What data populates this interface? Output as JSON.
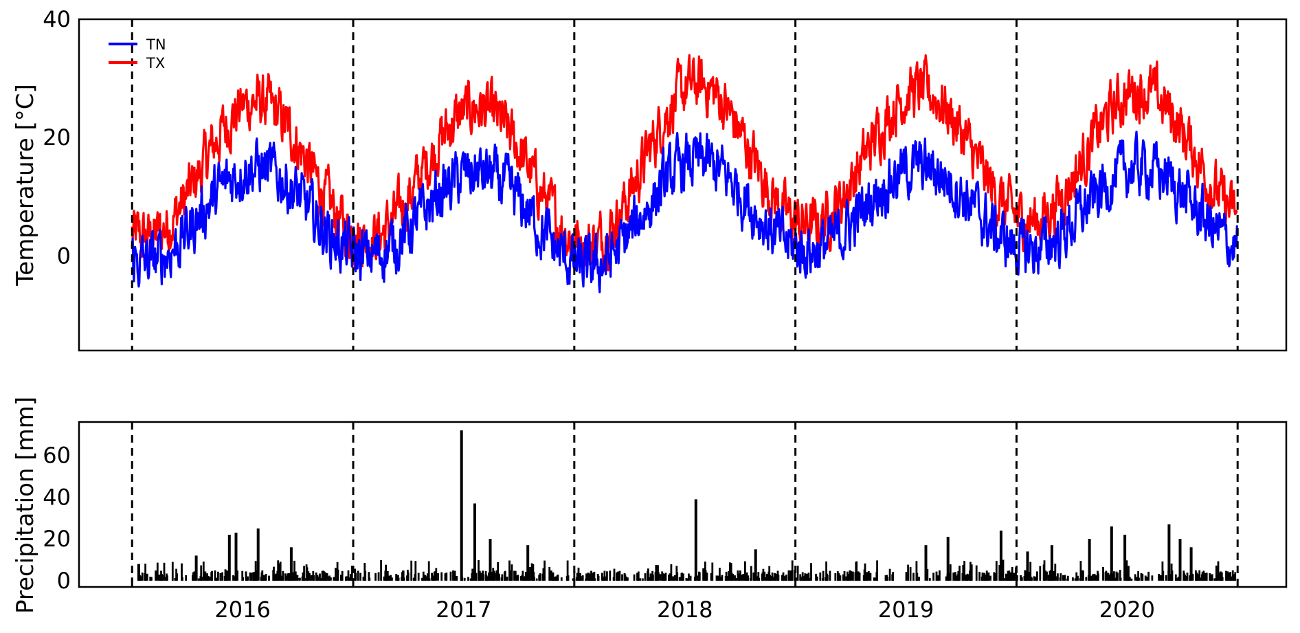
{
  "chart_data": [
    {
      "type": "line",
      "ylabel": "Temperature [°C]",
      "ylim": [
        -16,
        40
      ],
      "yticks": [
        0,
        20,
        40
      ],
      "x_unit": "year",
      "xlim": [
        2015.76,
        2021.22
      ],
      "year_boundaries": [
        2016.0,
        2017.0,
        2018.0,
        2019.0,
        2020.0,
        2021.0
      ],
      "grid": false,
      "legend": {
        "position": "top-left",
        "entries": [
          "TN",
          "TX"
        ]
      },
      "series": [
        {
          "name": "TN",
          "color": "#0000ff",
          "seasonal_mean": {
            "winter": [
              -1,
              0,
              -2,
              1,
              1
            ],
            "summer": [
              15,
              14,
              16,
              15,
              15
            ]
          },
          "points_per_year": 365
        },
        {
          "name": "TX",
          "color": "#ff0000",
          "seasonal_mean": {
            "winter": [
              3,
              3,
              2,
              5,
              6
            ],
            "summer": [
              26,
              25,
              29,
              28,
              28
            ]
          },
          "points_per_year": 365
        }
      ]
    },
    {
      "type": "bar",
      "ylabel": "Precipitation [mm]",
      "ylim": [
        -3,
        76
      ],
      "yticks": [
        0,
        20,
        40,
        60
      ],
      "xlim": [
        2015.76,
        2021.22
      ],
      "year_boundaries": [
        2016.0,
        2017.0,
        2018.0,
        2019.0,
        2020.0,
        2021.0
      ],
      "x": [
        2016.03,
        2016.29,
        2016.44,
        2016.47,
        2016.57,
        2016.72,
        2017.49,
        2017.55,
        2017.62,
        2017.79,
        2018.55,
        2018.82,
        2019.59,
        2019.69,
        2019.93,
        2020.05,
        2020.16,
        2020.33,
        2020.43,
        2020.49,
        2020.69,
        2020.74,
        2020.79
      ],
      "values": [
        8,
        12,
        22,
        23,
        25,
        16,
        72,
        37,
        20,
        17,
        39,
        15,
        17,
        21,
        24,
        14,
        17,
        20,
        26,
        22,
        27,
        20,
        16
      ],
      "baseline_rain_mm": [
        0,
        7
      ],
      "color": "#000000",
      "xtick_labels": [
        "2016",
        "2017",
        "2018",
        "2019",
        "2020"
      ],
      "xtick_positions": [
        2016.5,
        2017.5,
        2018.5,
        2019.5,
        2020.5
      ]
    }
  ]
}
